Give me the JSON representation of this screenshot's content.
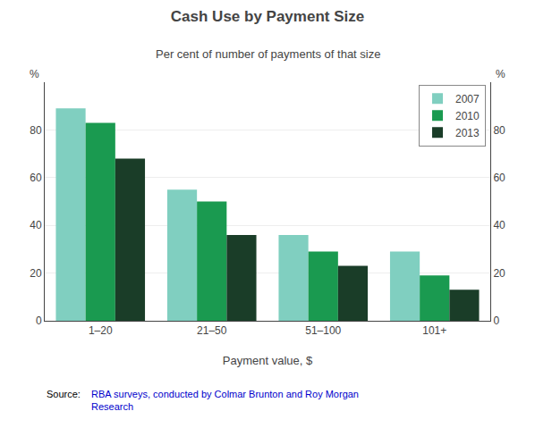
{
  "chart_data": {
    "type": "bar",
    "title": "Cash Use by Payment Size",
    "subtitle": "Per cent of number of payments of that size",
    "xlabel": "Payment value, $",
    "ylabel": "%",
    "y2label": "%",
    "categories": [
      "1–20",
      "21–50",
      "51–100",
      "101+"
    ],
    "series": [
      {
        "name": "2007",
        "color": "#80CFC0",
        "values": [
          89,
          55,
          36,
          29
        ]
      },
      {
        "name": "2010",
        "color": "#1A9A50",
        "values": [
          83,
          50,
          29,
          19
        ]
      },
      {
        "name": "2013",
        "color": "#1A3D28",
        "values": [
          68,
          36,
          23,
          13
        ]
      }
    ],
    "ylim": [
      0,
      100
    ],
    "yticks": [
      0,
      20,
      40,
      60,
      80
    ],
    "y2lim": [
      0,
      100
    ],
    "y2ticks": [
      0,
      20,
      40,
      60,
      80
    ],
    "grid": true,
    "legend": "upper right",
    "annotations": [
      {
        "text": "Source:"
      },
      {
        "text": "RBA surveys, conducted by Colmar Brunton and Roy Morgan\nResearch",
        "color": "#0000CC"
      }
    ]
  }
}
